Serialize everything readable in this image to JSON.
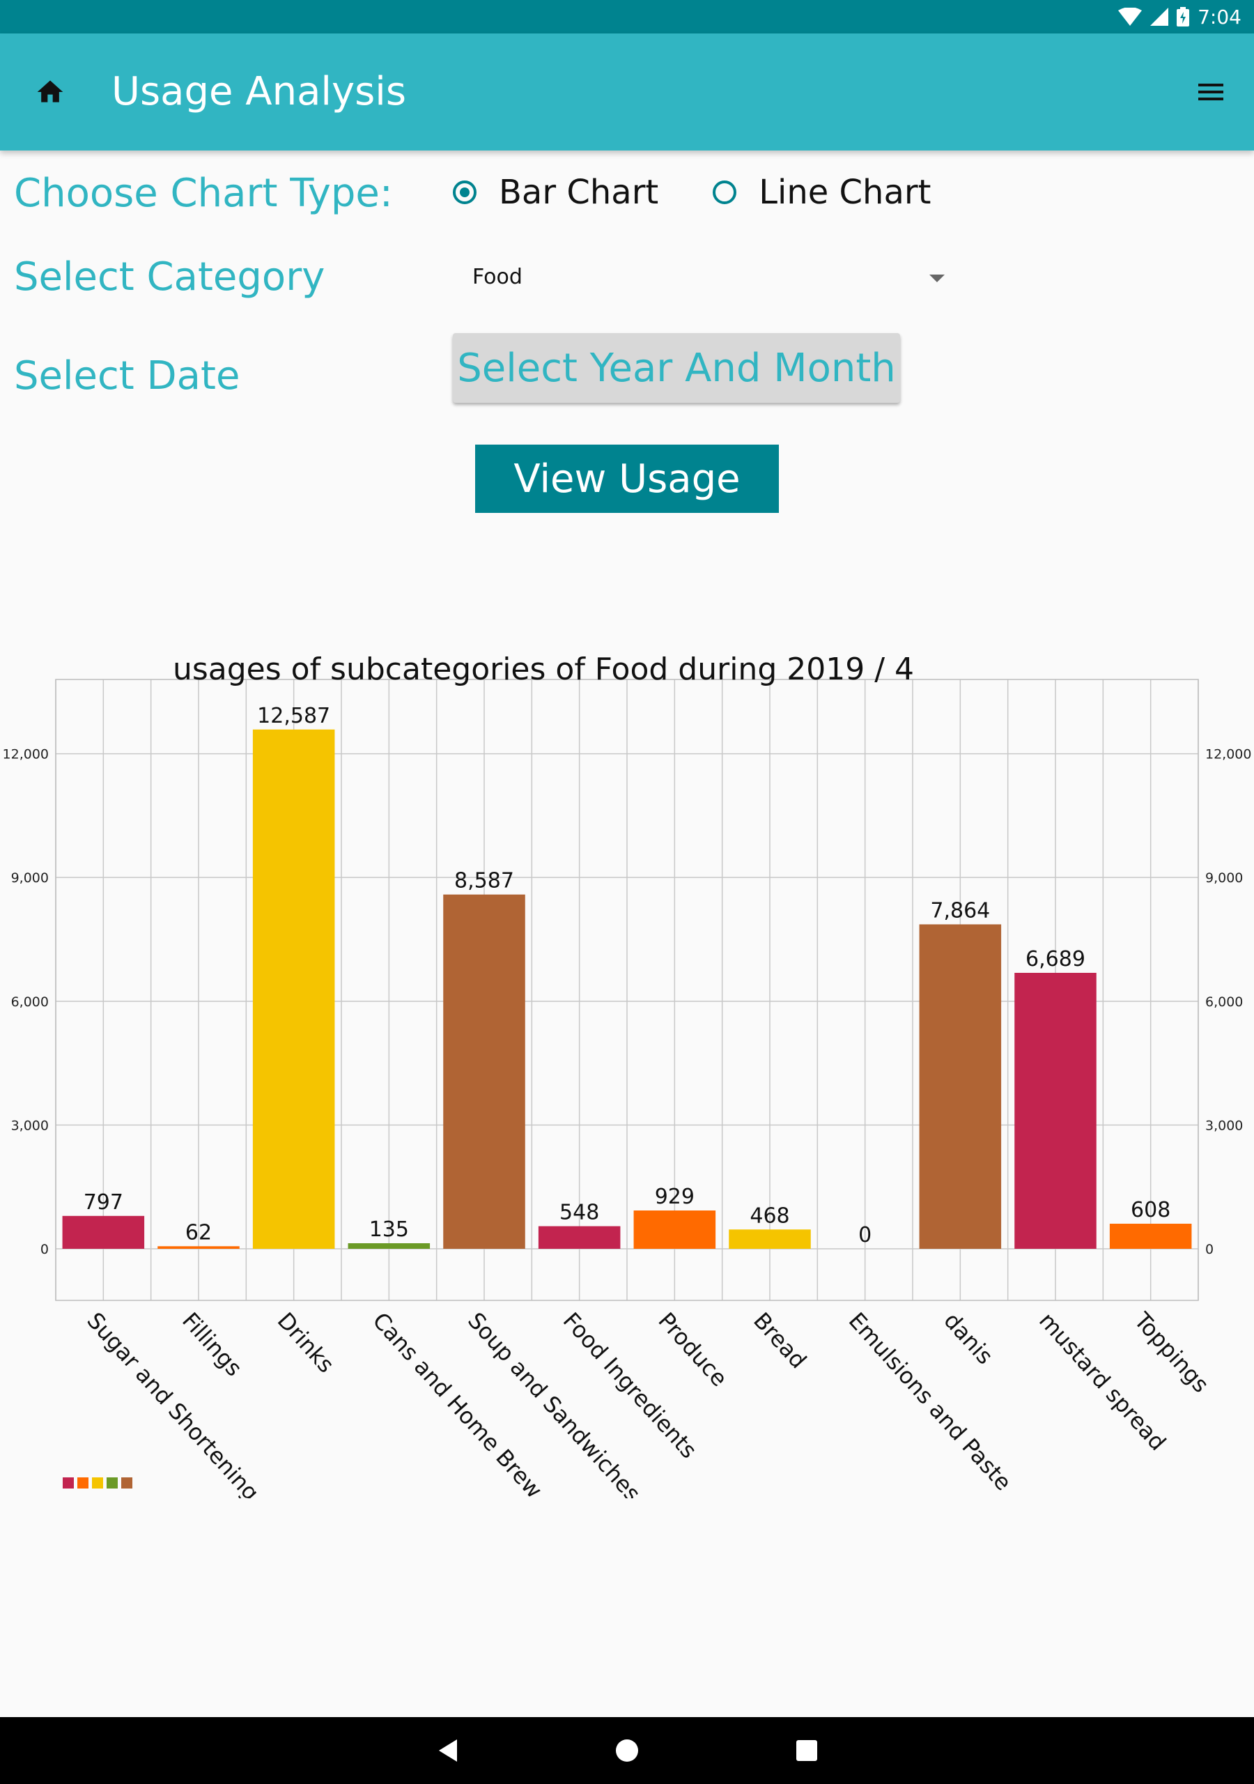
{
  "status_bar": {
    "time": "7:04"
  },
  "app_bar": {
    "title": "Usage Analysis",
    "home_icon": "home-icon",
    "menu_icon": "hamburger-menu-icon"
  },
  "form": {
    "chart_type_label": "Choose Chart Type:",
    "chart_type_options": [
      {
        "label": "Bar Chart",
        "selected": true
      },
      {
        "label": "Line Chart",
        "selected": false
      }
    ],
    "category_label": "Select Category",
    "category_value": "Food",
    "date_label": "Select Date",
    "date_button": "Select Year And Month",
    "view_button": "View Usage"
  },
  "colors": {
    "primary": "#31b5c2",
    "primary_dark": "#00838f"
  },
  "chart_data": {
    "type": "bar",
    "title": "usages of subcategories of Food during 2019 / 4",
    "categories": [
      "Sugar and Shortening",
      "Fillings",
      "Drinks",
      "Cans and Home Brew",
      "Soup and Sandwiches",
      "Food Ingredients",
      "Produce",
      "Bread",
      "Emulsions and Paste",
      "danis",
      "mustard spread",
      "Toppings"
    ],
    "values": [
      797,
      62,
      12587,
      135,
      8587,
      548,
      929,
      468,
      0,
      7864,
      6689,
      608
    ],
    "value_labels": [
      "797",
      "62",
      "12,587",
      "135",
      "8,587",
      "548",
      "929",
      "468",
      "0",
      "7,864",
      "6,689",
      "608"
    ],
    "bar_colors": [
      "#c2244f",
      "#ff6a00",
      "#f5c400",
      "#6b9a26",
      "#b06434",
      "#c2244f",
      "#ff6a00",
      "#f5c400",
      "#6b9a26",
      "#b06434",
      "#c2244f",
      "#ff6a00"
    ],
    "legend_colors": [
      "#c2244f",
      "#ff6a00",
      "#f5c400",
      "#6b9a26",
      "#b06434"
    ],
    "y_ticks": [
      0,
      3000,
      6000,
      9000,
      12000
    ],
    "y_tick_labels": [
      "0",
      "3,000",
      "6,000",
      "9,000",
      "12,000"
    ],
    "ylim": [
      -1250,
      13800
    ],
    "grid": true,
    "legend_position": "bottom-left"
  }
}
